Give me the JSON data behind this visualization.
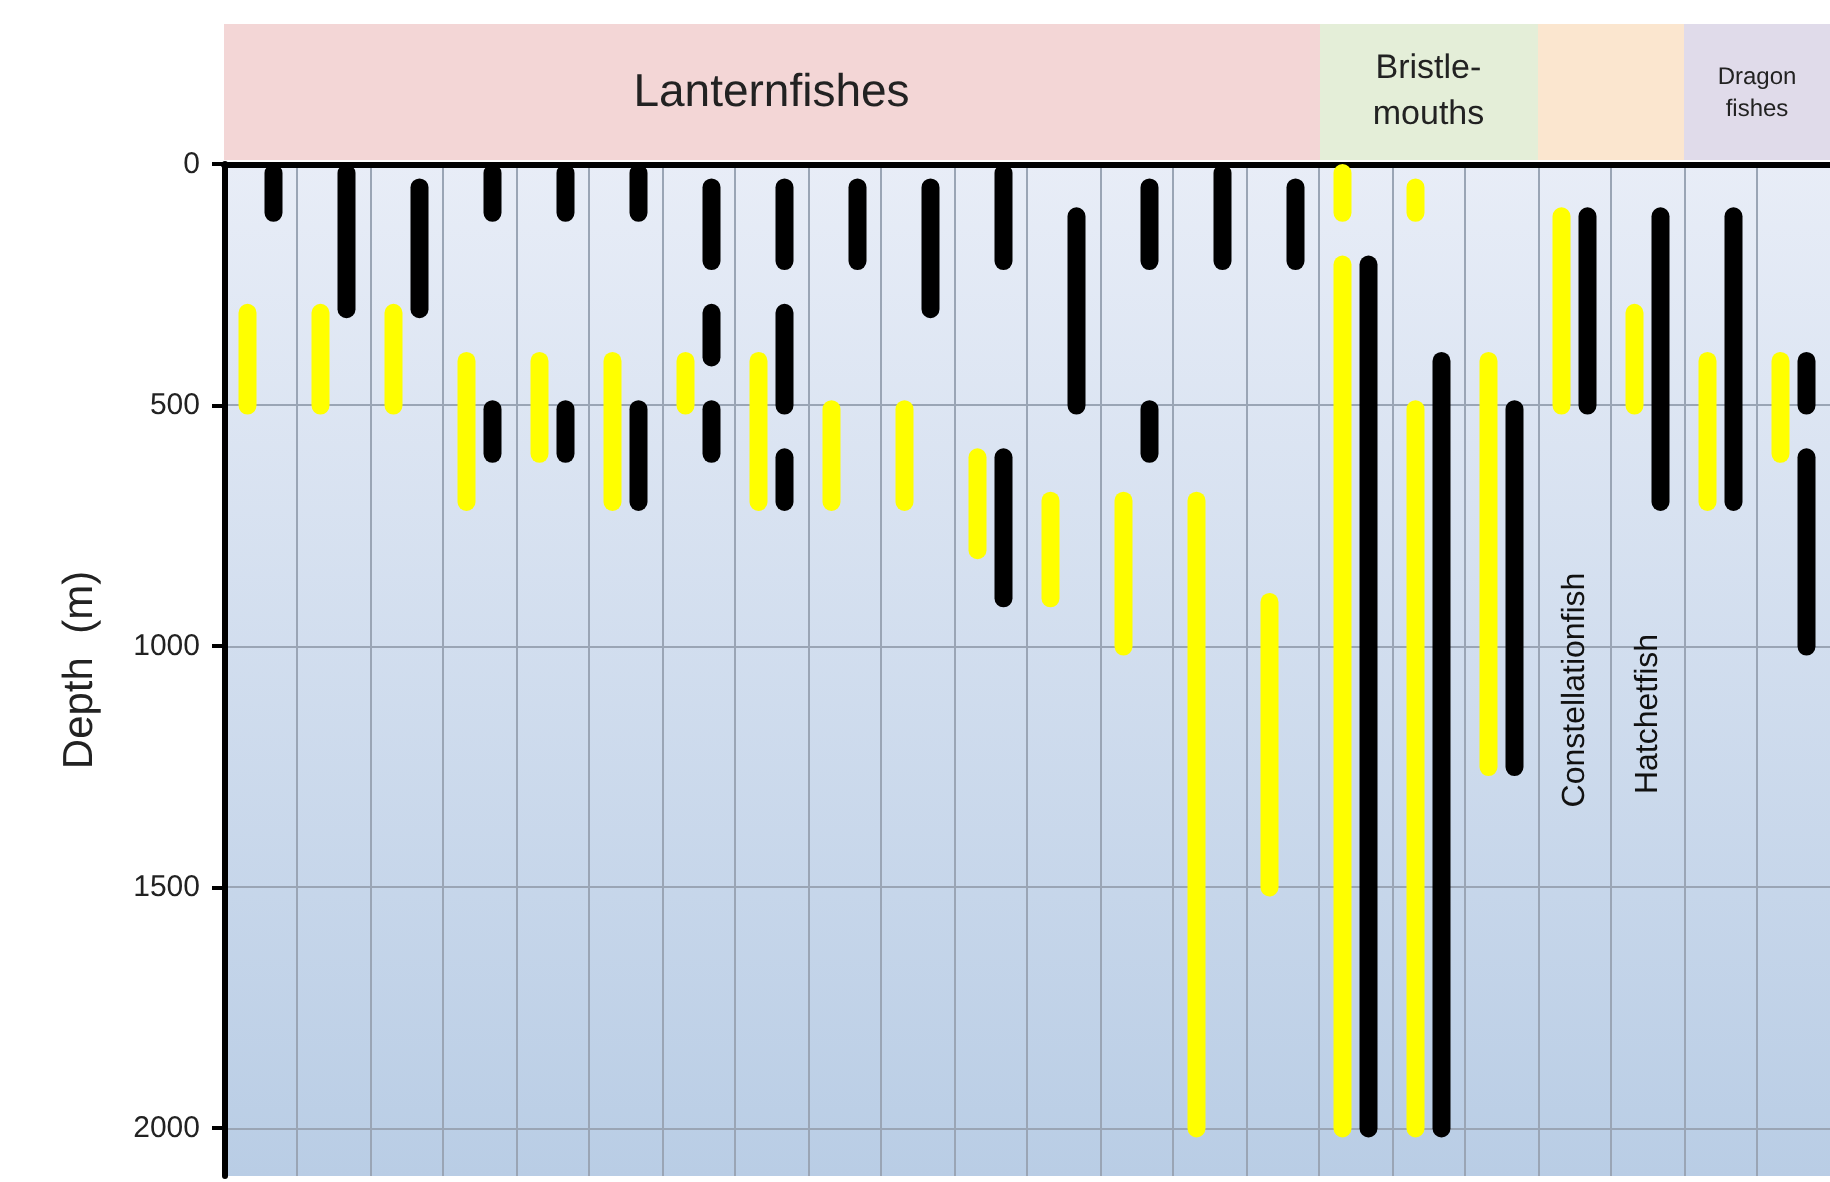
{
  "chart_data": {
    "type": "bar",
    "ylabel": "Depth  (m)",
    "tick_labels": "y",
    "grid": true,
    "categories": [
      null,
      null,
      null,
      null,
      null,
      null,
      null,
      null,
      null,
      null,
      null,
      null,
      null,
      null,
      null,
      null,
      null,
      null,
      null,
      null,
      null,
      null
    ],
    "ylim": [
      2100,
      0
    ],
    "yticks": [
      0,
      500,
      1000,
      1500,
      2000
    ],
    "series": [
      {
        "color": "#ffff00",
        "base": [
          290,
          290,
          290,
          390,
          390,
          390,
          390,
          390,
          490,
          490,
          590,
          680,
          680,
          680,
          890,
          0,
          30,
          390,
          90,
          290,
          390,
          390
        ],
        "values": [
          230,
          230,
          230,
          330,
          230,
          330,
          130,
          330,
          230,
          230,
          230,
          240,
          340,
          1340,
          630,
          120,
          90,
          880,
          430,
          230,
          330,
          230
        ]
      },
      {
        "color": "#ffff00",
        "base": [
          null,
          null,
          null,
          null,
          null,
          null,
          null,
          null,
          null,
          null,
          null,
          null,
          null,
          null,
          null,
          190,
          490,
          null,
          null,
          null,
          null,
          null
        ],
        "values": [
          null,
          null,
          null,
          null,
          null,
          null,
          null,
          null,
          null,
          null,
          null,
          null,
          null,
          null,
          null,
          1830,
          1530,
          null,
          null,
          null,
          null,
          null
        ]
      },
      {
        "color": "#000000",
        "base": [
          0,
          0,
          30,
          0,
          0,
          0,
          30,
          30,
          30,
          30,
          0,
          90,
          30,
          0,
          30,
          190,
          390,
          490,
          90,
          90,
          90,
          390
        ],
        "values": [
          120,
          320,
          290,
          120,
          120,
          120,
          190,
          190,
          190,
          290,
          220,
          430,
          190,
          220,
          190,
          1830,
          1630,
          780,
          430,
          630,
          630,
          130
        ]
      },
      {
        "color": "#000000",
        "base": [
          null,
          null,
          null,
          490,
          490,
          490,
          290,
          290,
          null,
          null,
          590,
          null,
          490,
          null,
          null,
          null,
          null,
          null,
          null,
          null,
          null,
          590
        ],
        "values": [
          null,
          null,
          null,
          130,
          130,
          230,
          130,
          230,
          null,
          null,
          330,
          null,
          130,
          null,
          null,
          null,
          null,
          null,
          null,
          null,
          null,
          430
        ]
      },
      {
        "color": "#000000",
        "base": [
          null,
          null,
          null,
          null,
          null,
          null,
          490,
          590,
          null,
          null,
          null,
          null,
          null,
          null,
          null,
          null,
          null,
          null,
          null,
          null,
          null,
          null
        ],
        "values": [
          null,
          null,
          null,
          null,
          null,
          null,
          130,
          130,
          null,
          null,
          null,
          null,
          null,
          null,
          null,
          null,
          null,
          null,
          null,
          null,
          null,
          null
        ]
      }
    ],
    "annotations": [
      "Lanternfishes",
      "Bristle-mouths",
      "Dragon fishes",
      "Constellationfish",
      "Hatchetfish"
    ]
  }
}
